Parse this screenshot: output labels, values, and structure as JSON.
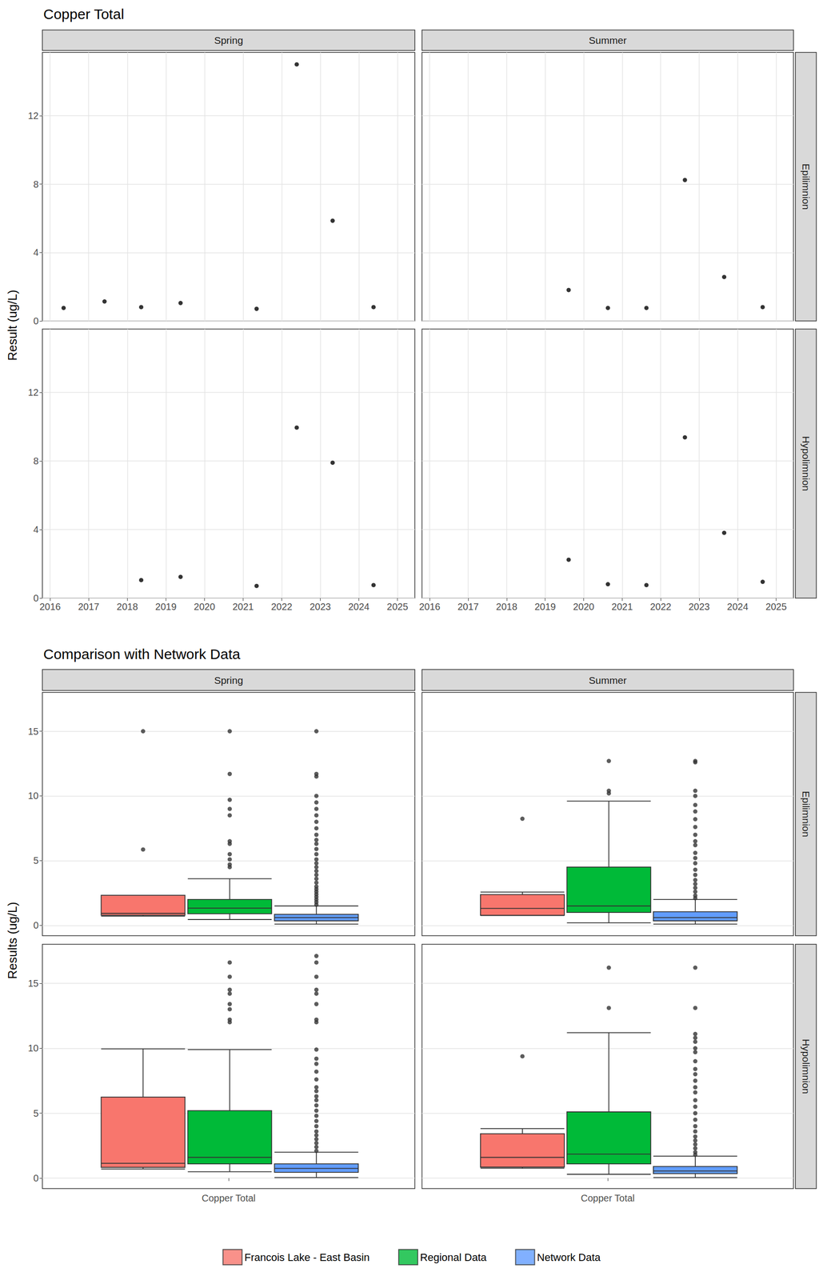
{
  "chart_data": [
    {
      "type": "scatter",
      "title": "Copper Total",
      "y_label": "Result (ug/L)",
      "columns": [
        "Spring",
        "Summer"
      ],
      "rows": [
        "Epilimnion",
        "Hypolimnion"
      ],
      "xlim": [
        2015.8,
        2025.45
      ],
      "xticks": [
        2016,
        2017,
        2018,
        2019,
        2020,
        2021,
        2022,
        2023,
        2024,
        2025
      ],
      "ylim": [
        0,
        15.7
      ],
      "yticks": [
        0,
        4,
        8,
        12
      ],
      "grid": true,
      "marker": "circle",
      "panels": [
        {
          "column": "Spring",
          "row": "Epilimnion",
          "x": [
            2016.35,
            2017.41,
            2018.36,
            2019.38,
            2021.35,
            2022.39,
            2023.32,
            2024.38
          ],
          "values": [
            0.76,
            1.14,
            0.81,
            1.05,
            0.71,
            15.0,
            5.86,
            0.81
          ]
        },
        {
          "column": "Summer",
          "row": "Epilimnion",
          "x": [
            2019.61,
            2020.63,
            2021.63,
            2022.63,
            2023.65,
            2024.65
          ],
          "values": [
            1.81,
            0.76,
            0.76,
            8.24,
            2.57,
            0.81
          ]
        },
        {
          "column": "Spring",
          "row": "Hypolimnion",
          "x": [
            2018.36,
            2019.38,
            2021.35,
            2022.39,
            2023.32,
            2024.38
          ],
          "values": [
            1.05,
            1.24,
            0.71,
            9.95,
            7.9,
            0.76
          ]
        },
        {
          "column": "Summer",
          "row": "Hypolimnion",
          "x": [
            2019.61,
            2020.63,
            2021.63,
            2022.63,
            2023.65,
            2024.65
          ],
          "values": [
            2.24,
            0.81,
            0.76,
            9.38,
            3.81,
            0.95
          ]
        }
      ]
    },
    {
      "type": "boxplot",
      "title": "Comparison with Network Data",
      "y_label": "Results (ug/L)",
      "categories": [
        "Copper Total"
      ],
      "columns": [
        "Spring",
        "Summer"
      ],
      "rows": [
        "Epilimnion",
        "Hypolimnion"
      ],
      "ylim": [
        -0.8,
        18
      ],
      "yticks": [
        0,
        5,
        10,
        15
      ],
      "grid": true,
      "legend": "bottom",
      "marker": "circle",
      "series": [
        {
          "name": "Francois Lake - East Basin",
          "color": "#F8766D"
        },
        {
          "name": "Regional Data",
          "color": "#00BA38"
        },
        {
          "name": "Network Data",
          "color": "#619CFF"
        }
      ],
      "panels": [
        {
          "column": "Spring",
          "row": "Epilimnion",
          "groups": [
            {
              "box": [
                0.71,
                0.79,
                0.93,
                2.32,
                2.32
              ],
              "outliers": [
                5.86,
                15.0
              ]
            },
            {
              "box": [
                0.45,
                0.9,
                1.33,
                2.0,
                3.6
              ],
              "outliers": [
                4.5,
                4.7,
                5.1,
                5.5,
                6.3,
                6.5,
                8.5,
                9.0,
                9.7,
                11.7,
                15.0
              ]
            },
            {
              "box": [
                0.1,
                0.35,
                0.6,
                0.85,
                1.5
              ],
              "outliers": [
                1.6,
                1.8,
                2.0,
                2.2,
                2.4,
                2.6,
                2.8,
                3.0,
                3.3,
                3.6,
                3.9,
                4.2,
                4.5,
                4.8,
                5.1,
                5.5,
                5.9,
                6.3,
                6.6,
                7.0,
                7.5,
                8.0,
                8.5,
                9.0,
                9.5,
                10.0,
                11.5,
                11.7,
                15.0
              ]
            }
          ]
        },
        {
          "column": "Summer",
          "row": "Epilimnion",
          "groups": [
            {
              "box": [
                0.76,
                0.775,
                1.31,
                2.38,
                2.57
              ],
              "outliers": [
                8.24
              ]
            },
            {
              "box": [
                0.2,
                1.0,
                1.5,
                4.5,
                9.6
              ],
              "outliers": [
                10.2,
                10.4,
                12.7
              ]
            },
            {
              "box": [
                0.1,
                0.35,
                0.6,
                1.05,
                2.0
              ],
              "outliers": [
                2.1,
                2.3,
                2.6,
                2.9,
                3.2,
                3.5,
                3.9,
                4.3,
                4.8,
                5.2,
                5.6,
                6.2,
                6.5,
                7.0,
                7.6,
                8.2,
                8.8,
                9.3,
                10.0,
                10.4,
                12.6,
                12.7
              ]
            }
          ]
        },
        {
          "column": "Spring",
          "row": "Hypolimnion",
          "groups": [
            {
              "box": [
                0.71,
                0.83,
                1.15,
                6.24,
                9.95
              ],
              "outliers": []
            },
            {
              "box": [
                0.5,
                1.1,
                1.6,
                5.2,
                9.9
              ],
              "outliers": [
                12.0,
                12.2,
                13.0,
                13.4,
                14.2,
                14.5,
                15.5,
                16.6
              ]
            },
            {
              "box": [
                0.05,
                0.45,
                0.75,
                1.1,
                2.0
              ],
              "outliers": [
                2.1,
                2.4,
                2.7,
                3.0,
                3.3,
                3.6,
                4.0,
                4.4,
                4.8,
                5.2,
                5.6,
                6.0,
                6.3,
                6.7,
                7.0,
                7.6,
                8.2,
                8.8,
                9.2,
                9.9,
                12.0,
                12.2,
                13.4,
                14.2,
                14.5,
                15.5,
                16.6,
                17.1
              ]
            }
          ]
        },
        {
          "column": "Summer",
          "row": "Hypolimnion",
          "groups": [
            {
              "box": [
                0.76,
                0.85,
                1.6,
                3.42,
                3.81
              ],
              "outliers": [
                9.38
              ]
            },
            {
              "box": [
                0.3,
                1.1,
                1.85,
                5.1,
                11.2
              ],
              "outliers": [
                13.1,
                16.2
              ]
            },
            {
              "box": [
                0.05,
                0.35,
                0.55,
                0.9,
                1.7
              ],
              "outliers": [
                1.8,
                2.0,
                2.3,
                2.6,
                2.9,
                3.2,
                3.6,
                4.0,
                4.5,
                5.0,
                5.5,
                6.0,
                6.6,
                7.0,
                7.5,
                8.0,
                8.4,
                9.0,
                9.7,
                10.0,
                10.5,
                10.8,
                11.1,
                13.1,
                16.2
              ]
            }
          ]
        }
      ]
    }
  ]
}
